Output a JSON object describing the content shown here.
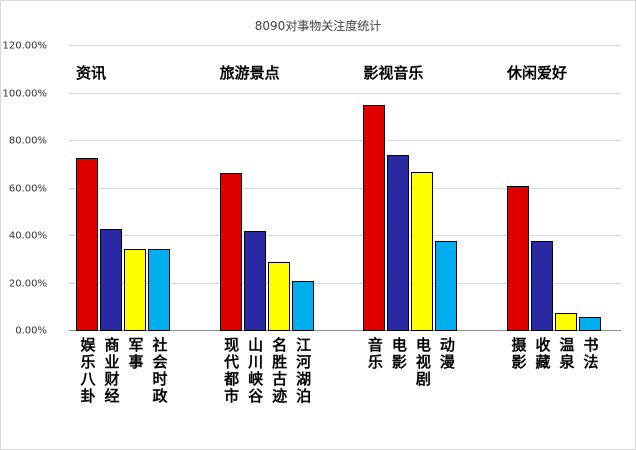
{
  "chart_data": {
    "type": "bar",
    "title": "8090对事物关注度统计",
    "ylim": [
      0,
      120
    ],
    "yticks": [
      "0.00%",
      "20.00%",
      "40.00%",
      "60.00%",
      "80.00%",
      "100.00%",
      "120.00%"
    ],
    "grid": true,
    "legend": false,
    "colors": [
      "#e00000",
      "#2929a3",
      "#ffff00",
      "#00aeef"
    ],
    "groups": [
      {
        "label": "资讯",
        "bars": [
          {
            "name": "娱乐八卦",
            "value": 73
          },
          {
            "name": "商业财经",
            "value": 43
          },
          {
            "name": "军事",
            "value": 34.5
          },
          {
            "name": "社会时政",
            "value": 34.5
          }
        ]
      },
      {
        "label": "旅游景点",
        "bars": [
          {
            "name": "现代都市",
            "value": 66.5
          },
          {
            "name": "山川峡谷",
            "value": 42
          },
          {
            "name": "名胜古迹",
            "value": 29
          },
          {
            "name": "江河湖泊",
            "value": 21
          }
        ]
      },
      {
        "label": "影视音乐",
        "bars": [
          {
            "name": "音乐",
            "value": 95
          },
          {
            "name": "电影",
            "value": 74
          },
          {
            "name": "电视剧",
            "value": 67
          },
          {
            "name": "动漫",
            "value": 38
          }
        ]
      },
      {
        "label": "休闲爱好",
        "bars": [
          {
            "name": "摄影",
            "value": 61
          },
          {
            "name": "收藏",
            "value": 38
          },
          {
            "name": "温泉",
            "value": 7.5
          },
          {
            "name": "书法",
            "value": 6
          }
        ]
      }
    ]
  }
}
